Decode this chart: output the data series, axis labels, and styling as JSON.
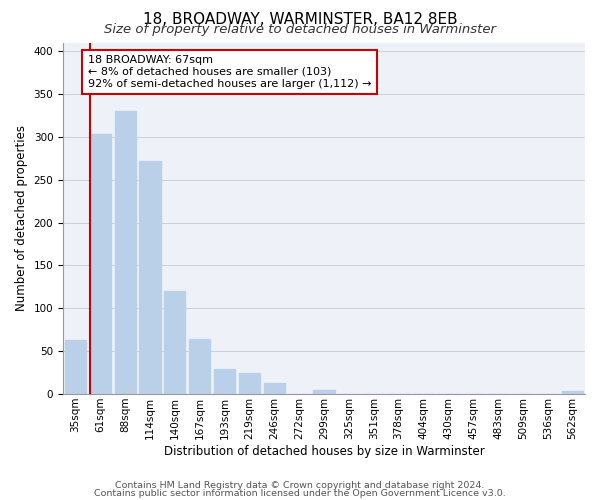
{
  "title": "18, BROADWAY, WARMINSTER, BA12 8EB",
  "subtitle": "Size of property relative to detached houses in Warminster",
  "xlabel": "Distribution of detached houses by size in Warminster",
  "ylabel": "Number of detached properties",
  "bar_labels": [
    "35sqm",
    "61sqm",
    "88sqm",
    "114sqm",
    "140sqm",
    "167sqm",
    "193sqm",
    "219sqm",
    "246sqm",
    "272sqm",
    "299sqm",
    "325sqm",
    "351sqm",
    "378sqm",
    "404sqm",
    "430sqm",
    "457sqm",
    "483sqm",
    "509sqm",
    "536sqm",
    "562sqm"
  ],
  "bar_values": [
    63,
    303,
    330,
    272,
    120,
    64,
    29,
    25,
    13,
    0,
    5,
    0,
    0,
    0,
    0,
    0,
    0,
    0,
    0,
    0,
    3
  ],
  "bar_color": "#bad0e8",
  "vline_color": "#cc0000",
  "annotation_title": "18 BROADWAY: 67sqm",
  "annotation_line1": "← 8% of detached houses are smaller (103)",
  "annotation_line2": "92% of semi-detached houses are larger (1,112) →",
  "annotation_box_facecolor": "#ffffff",
  "annotation_box_edgecolor": "#cc0000",
  "ylim": [
    0,
    410
  ],
  "yticks": [
    0,
    50,
    100,
    150,
    200,
    250,
    300,
    350,
    400
  ],
  "footer1": "Contains HM Land Registry data © Crown copyright and database right 2024.",
  "footer2": "Contains public sector information licensed under the Open Government Licence v3.0.",
  "bg_color": "#ffffff",
  "axes_bg_color": "#eef2f8",
  "grid_color": "#c8d0dc",
  "title_fontsize": 11,
  "subtitle_fontsize": 9.5,
  "axis_label_fontsize": 8.5,
  "tick_fontsize": 7.5,
  "footer_fontsize": 6.8
}
